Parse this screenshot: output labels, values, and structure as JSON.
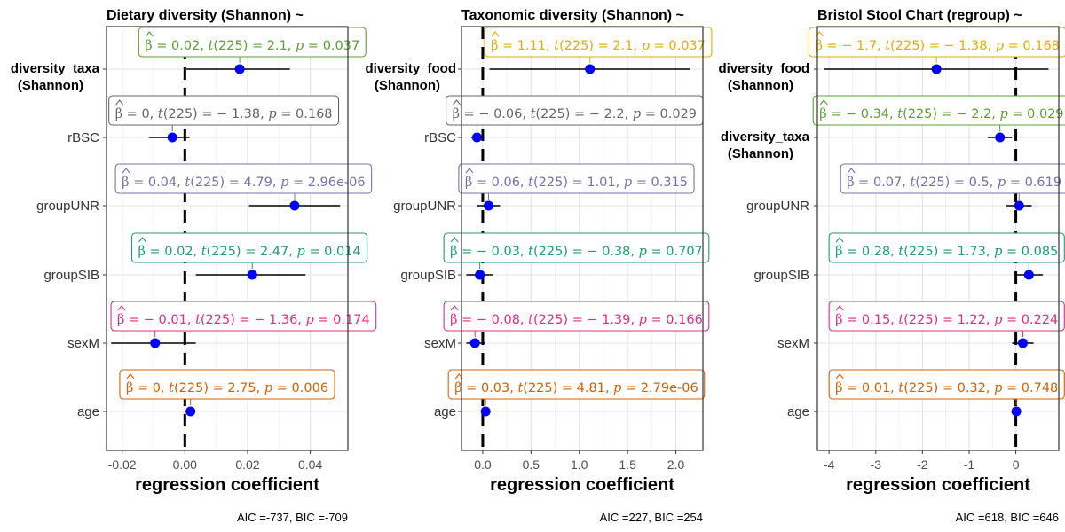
{
  "chart_data": [
    {
      "type": "forest",
      "title": "Dietary diversity (Shannon) ~",
      "xlabel": "regression coefficient",
      "xlim": [
        -0.025,
        0.052
      ],
      "xticks": [
        -0.02,
        0.0,
        0.02,
        0.04
      ],
      "tick_labels": [
        "-0.02",
        "0.00",
        "0.02",
        "0.04"
      ],
      "footer": "AIC =-737, BIC =-709",
      "rows": [
        {
          "term": "diversity_taxa",
          "term2": "(Shannon)",
          "bold": true,
          "estimate": 0.0175,
          "ci": [
            0.0005,
            0.0335
          ],
          "beta": "0.02",
          "t": "2.1",
          "p": "0.037",
          "color": "#5aa02c",
          "label_center": 0.0215
        },
        {
          "term": "rBSC",
          "term2": "",
          "bold": false,
          "estimate": -0.004,
          "ci": [
            -0.0115,
            0.0015
          ],
          "beta": "0",
          "t": "− 1.38",
          "p": "0.168",
          "color": "#666666",
          "label_center": 0.0124
        },
        {
          "term": "groupUNR",
          "term2": "",
          "bold": false,
          "estimate": 0.035,
          "ci": [
            0.0205,
            0.0495
          ],
          "beta": "0.04",
          "t": "4.79",
          "p": "2.96e-06",
          "color": "#7570b3",
          "label_center": 0.0187
        },
        {
          "term": "groupSIB",
          "term2": "",
          "bold": false,
          "estimate": 0.0215,
          "ci": [
            0.0035,
            0.0385
          ],
          "beta": "0.02",
          "t": "2.47",
          "p": "0.014",
          "color": "#1b9e77",
          "label_center": 0.0206
        },
        {
          "term": "sexM",
          "term2": "",
          "bold": false,
          "estimate": -0.0095,
          "ci": [
            -0.0235,
            0.0035
          ],
          "beta": "− 0.01",
          "t": "− 1.36",
          "p": "0.174",
          "color": "#e7298a",
          "label_center": 0.0187
        },
        {
          "term": "age",
          "term2": "",
          "bold": false,
          "estimate": 0.0018,
          "ci": [
            0.0013,
            0.0023
          ],
          "beta": "0",
          "t": "2.75",
          "p": "0.006",
          "color": "#d95f02",
          "label_center": 0.0135
        }
      ]
    },
    {
      "type": "forest",
      "title": "Taxonomic diversity (Shannon) ~",
      "xlabel": "regression coefficient",
      "xlim": [
        -0.22,
        2.28
      ],
      "xticks": [
        0.0,
        0.5,
        1.0,
        1.5,
        2.0
      ],
      "tick_labels": [
        "0.0",
        "0.5",
        "1.0",
        "1.5",
        "2.0"
      ],
      "footer": "AIC =227, BIC =254",
      "rows": [
        {
          "term": "diversity_food",
          "term2": "(Shannon)",
          "bold": true,
          "estimate": 1.11,
          "ci": [
            0.07,
            2.15
          ],
          "beta": "1.11",
          "t": "2.1",
          "p": "0.037",
          "color": "#e6ab02",
          "label_center": 1.195
        },
        {
          "term": "rBSC",
          "term2": "",
          "bold": false,
          "estimate": -0.06,
          "ci": [
            -0.12,
            0.0
          ],
          "beta": "− 0.06",
          "t": "− 2.2",
          "p": "0.029",
          "color": "#666666",
          "label_center": 0.95
        },
        {
          "term": "groupUNR",
          "term2": "",
          "bold": false,
          "estimate": 0.06,
          "ci": [
            -0.06,
            0.18
          ],
          "beta": "0.06",
          "t": "1.01",
          "p": "0.315",
          "color": "#7570b3",
          "label_center": 0.97
        },
        {
          "term": "groupSIB",
          "term2": "",
          "bold": false,
          "estimate": -0.03,
          "ci": [
            -0.17,
            0.11
          ],
          "beta": "− 0.03",
          "t": "− 0.38",
          "p": "0.707",
          "color": "#1b9e77",
          "label_center": 0.97
        },
        {
          "term": "sexM",
          "term2": "",
          "bold": false,
          "estimate": -0.08,
          "ci": [
            -0.17,
            0.02
          ],
          "beta": "− 0.08",
          "t": "− 1.39",
          "p": "0.166",
          "color": "#e7298a",
          "label_center": 0.97
        },
        {
          "term": "age",
          "term2": "",
          "bold": false,
          "estimate": 0.03,
          "ci": [
            0.02,
            0.045
          ],
          "beta": "0.03",
          "t": "4.81",
          "p": "2.79e-06",
          "color": "#d95f02",
          "label_center": 0.97
        }
      ]
    },
    {
      "type": "forest",
      "title": "Bristol Stool Chart (regroup) ~",
      "xlabel": "regression coefficient",
      "xlim": [
        -4.25,
        0.92
      ],
      "xticks": [
        -4,
        -3,
        -2,
        -1,
        0
      ],
      "tick_labels": [
        "-4",
        "-3",
        "-2",
        "-1",
        "0"
      ],
      "footer": "AIC =618, BIC =646",
      "rows": [
        {
          "term": "diversity_food",
          "term2": "(Shannon)",
          "bold": true,
          "estimate": -1.7,
          "ci": [
            -4.1,
            0.7
          ],
          "beta": "− 1.7",
          "t": "− 1.38",
          "p": "0.168",
          "color": "#e6ab02",
          "label_center": -1.68
        },
        {
          "term": "diversity_taxa",
          "term2": "(Shannon)",
          "bold": true,
          "estimate": -0.34,
          "ci": [
            -0.6,
            -0.08
          ],
          "beta": "− 0.34",
          "t": "− 2.2",
          "p": "0.029",
          "color": "#5aa02c",
          "label_center": -1.59
        },
        {
          "term": "groupUNR",
          "term2": "",
          "bold": false,
          "estimate": 0.07,
          "ci": [
            -0.2,
            0.34
          ],
          "beta": "0.07",
          "t": "0.5",
          "p": "0.619",
          "color": "#7570b3",
          "label_center": -1.32
        },
        {
          "term": "groupSIB",
          "term2": "",
          "bold": false,
          "estimate": 0.28,
          "ci": [
            0.0,
            0.58
          ],
          "beta": "0.28",
          "t": "1.73",
          "p": "0.085",
          "color": "#1b9e77",
          "label_center": -1.48
        },
        {
          "term": "sexM",
          "term2": "",
          "bold": false,
          "estimate": 0.15,
          "ci": [
            -0.08,
            0.38
          ],
          "beta": "0.15",
          "t": "1.22",
          "p": "0.224",
          "color": "#e7298a",
          "label_center": -1.48
        },
        {
          "term": "age",
          "term2": "",
          "bold": false,
          "estimate": 0.01,
          "ci": [
            -0.02,
            0.04
          ],
          "beta": "0.01",
          "t": "0.32",
          "p": "0.748",
          "color": "#d95f02",
          "label_center": -1.48
        }
      ]
    }
  ]
}
